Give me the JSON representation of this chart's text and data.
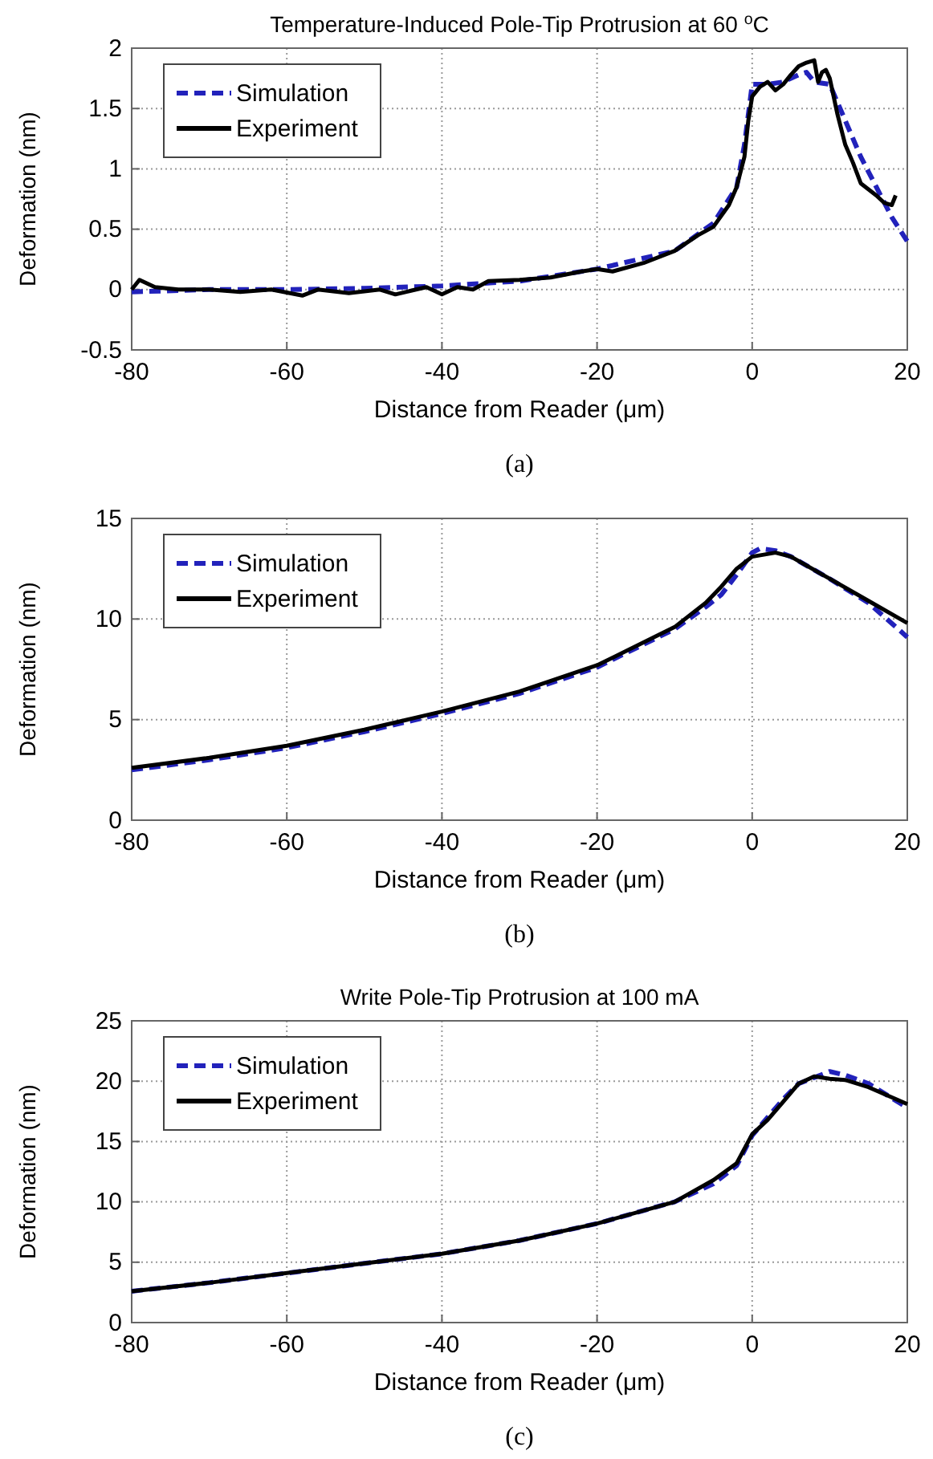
{
  "chart_data": [
    {
      "type": "line",
      "title": "Temperature-Induced Pole-Tip Protrusion at 60 $^{o}$C",
      "xlabel": "Distance from Reader (μm)",
      "ylabel": "Deformation (nm)",
      "annotations": [
        "(a)"
      ],
      "xlim": [
        -80,
        20
      ],
      "xticks": [
        -80,
        -60,
        -40,
        -20,
        0,
        20
      ],
      "ylim": [
        -0.5,
        2
      ],
      "yticks": [
        -0.5,
        0,
        0.5,
        1,
        1.5,
        2
      ],
      "grid": true,
      "legend": "top left",
      "series": [
        {
          "name": "Simulation",
          "color": "#2222bb",
          "line_style": "dashed",
          "x": [
            -80,
            -70,
            -60,
            -50,
            -40,
            -30,
            -20,
            -10,
            -5,
            -2,
            -1,
            0,
            2,
            4,
            6,
            7,
            8,
            10,
            12,
            14,
            16,
            18,
            20
          ],
          "values": [
            -0.02,
            0.0,
            0.0,
            0.01,
            0.03,
            0.07,
            0.17,
            0.32,
            0.55,
            0.85,
            1.2,
            1.7,
            1.7,
            1.72,
            1.78,
            1.8,
            1.72,
            1.7,
            1.4,
            1.1,
            0.85,
            0.6,
            0.4
          ]
        },
        {
          "name": "Experiment",
          "color": "#000000",
          "line_style": "solid",
          "x": [
            -80,
            -79,
            -77,
            -74,
            -70,
            -66,
            -62,
            -58,
            -56,
            -52,
            -48,
            -46,
            -42,
            -40,
            -38,
            -36,
            -34,
            -30,
            -26,
            -22,
            -20,
            -18,
            -14,
            -10,
            -7,
            -5,
            -3,
            -2,
            -1,
            -0.5,
            0,
            1,
            2,
            3,
            4,
            5,
            6,
            7,
            8,
            8.5,
            9,
            9.5,
            10,
            11,
            12,
            13,
            14,
            16,
            17,
            18,
            18.5
          ],
          "values": [
            0.0,
            0.08,
            0.02,
            0.0,
            0.0,
            -0.02,
            0.0,
            -0.05,
            0.0,
            -0.03,
            0.0,
            -0.04,
            0.02,
            -0.04,
            0.02,
            0.0,
            0.07,
            0.08,
            0.1,
            0.15,
            0.17,
            0.15,
            0.22,
            0.32,
            0.45,
            0.52,
            0.7,
            0.85,
            1.1,
            1.4,
            1.6,
            1.68,
            1.72,
            1.65,
            1.7,
            1.78,
            1.85,
            1.88,
            1.9,
            1.72,
            1.8,
            1.82,
            1.75,
            1.45,
            1.2,
            1.05,
            0.88,
            0.78,
            0.72,
            0.7,
            0.78
          ]
        }
      ]
    },
    {
      "type": "line",
      "xlabel": "Distance from Reader (μm)",
      "ylabel": "Deformation (nm)",
      "annotations": [
        "(b)"
      ],
      "xlim": [
        -80,
        20
      ],
      "xticks": [
        -80,
        -60,
        -40,
        -20,
        0,
        20
      ],
      "ylim": [
        0,
        15
      ],
      "yticks": [
        0,
        5,
        10,
        15
      ],
      "grid": true,
      "legend": "top left",
      "series": [
        {
          "name": "Simulation",
          "color": "#2222bb",
          "line_style": "dashed",
          "x": [
            -80,
            -70,
            -60,
            -50,
            -40,
            -30,
            -20,
            -10,
            -6,
            -4,
            -2,
            0,
            1,
            3,
            5,
            10,
            15,
            20
          ],
          "values": [
            2.5,
            3.0,
            3.6,
            4.4,
            5.3,
            6.3,
            7.6,
            9.5,
            10.6,
            11.2,
            12.2,
            13.3,
            13.5,
            13.4,
            13.1,
            12.0,
            10.8,
            9.1
          ]
        },
        {
          "name": "Experiment",
          "color": "#000000",
          "line_style": "solid",
          "x": [
            -80,
            -70,
            -60,
            -50,
            -40,
            -30,
            -20,
            -10,
            -6,
            -4,
            -2,
            0,
            3,
            5,
            10,
            15,
            20
          ],
          "values": [
            2.6,
            3.1,
            3.7,
            4.5,
            5.4,
            6.4,
            7.7,
            9.6,
            10.8,
            11.6,
            12.5,
            13.1,
            13.3,
            13.1,
            12.0,
            10.9,
            9.8
          ]
        }
      ]
    },
    {
      "type": "line",
      "title": "Write Pole-Tip Protrusion at 100 mA",
      "xlabel": "Distance from Reader (μm)",
      "ylabel": "Deformation (nm)",
      "annotations": [
        "(c)"
      ],
      "xlim": [
        -80,
        20
      ],
      "xticks": [
        -80,
        -60,
        -40,
        -20,
        0,
        20
      ],
      "ylim": [
        0,
        25
      ],
      "yticks": [
        0,
        5,
        10,
        15,
        20,
        25
      ],
      "grid": true,
      "legend": "top left",
      "series": [
        {
          "name": "Simulation",
          "color": "#2222bb",
          "line_style": "dashed",
          "x": [
            -80,
            -70,
            -60,
            -50,
            -40,
            -30,
            -20,
            -10,
            -5,
            -2,
            0,
            2,
            4,
            6,
            8,
            10,
            12,
            15,
            20
          ],
          "values": [
            2.6,
            3.3,
            4.1,
            4.9,
            5.7,
            6.8,
            8.2,
            10.0,
            11.5,
            13.0,
            15.5,
            17.0,
            18.5,
            19.8,
            20.3,
            20.8,
            20.5,
            19.8,
            17.8
          ]
        },
        {
          "name": "Experiment",
          "color": "#000000",
          "line_style": "solid",
          "x": [
            -80,
            -70,
            -60,
            -50,
            -40,
            -30,
            -20,
            -10,
            -5,
            -2,
            0,
            2,
            4,
            6,
            8,
            10,
            12,
            15,
            20
          ],
          "values": [
            2.6,
            3.3,
            4.1,
            4.9,
            5.7,
            6.8,
            8.2,
            10.0,
            11.8,
            13.2,
            15.6,
            16.8,
            18.3,
            19.8,
            20.4,
            20.2,
            20.1,
            19.5,
            18.1
          ]
        }
      ]
    }
  ]
}
